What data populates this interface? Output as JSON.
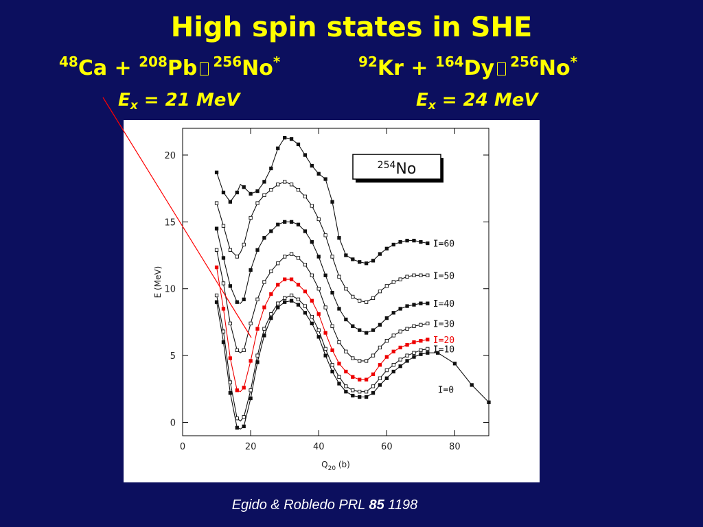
{
  "slide": {
    "title": "High spin states in SHE",
    "left": {
      "t1": "48",
      "e1": "Ca",
      "plus": " + ",
      "t2": "208",
      "e2": "Pb",
      "t3": "256",
      "e3": "No",
      "star": "*",
      "ex": {
        "E": "E",
        "x": "x",
        "val": " = 21 MeV"
      }
    },
    "right": {
      "t1": "92",
      "e1": "Kr",
      "plus": " + ",
      "t2": "164",
      "e2": "Dy",
      "t3": "256",
      "e3": "No",
      "star": "*",
      "ex": {
        "E": "E",
        "x": "x",
        "val": " = 24 MeV"
      }
    },
    "citation": {
      "authors": "Egido & Robledo PRL ",
      "vol": "85",
      "page": " 1198"
    },
    "colors": {
      "background": "#0c0f5e",
      "heading": "#ffff00",
      "highlight": "#ee0000",
      "pointer": "#ff0000"
    }
  },
  "chart_data": {
    "type": "line",
    "box_label": {
      "mass": "254",
      "element": "No"
    },
    "xlabel": {
      "main": "Q",
      "sub": "20",
      "unit": " (b)"
    },
    "ylabel": "E (MeV)",
    "xlim": [
      0,
      90
    ],
    "ylim": [
      -1,
      22
    ],
    "xticks": [
      0,
      20,
      40,
      60,
      80
    ],
    "yticks": [
      0,
      5,
      10,
      15,
      20
    ],
    "grid": false,
    "series": [
      {
        "name": "I=0",
        "highlight": false,
        "x": [
          10,
          12,
          14,
          16,
          17,
          18,
          20,
          22,
          24,
          26,
          28,
          30,
          32,
          34,
          36,
          38,
          40,
          42,
          44,
          46,
          48,
          50,
          52,
          54,
          56,
          58,
          60,
          62,
          64,
          66,
          68,
          70,
          72,
          75,
          80,
          85,
          90
        ],
        "y": [
          9.0,
          6.0,
          2.2,
          -0.4,
          -0.5,
          -0.3,
          1.8,
          4.5,
          6.5,
          7.8,
          8.6,
          9.0,
          9.1,
          8.8,
          8.2,
          7.4,
          6.4,
          5.0,
          3.8,
          2.9,
          2.3,
          2.0,
          1.9,
          1.9,
          2.2,
          2.8,
          3.3,
          3.8,
          4.2,
          4.6,
          4.9,
          5.1,
          5.2,
          5.2,
          4.4,
          2.8,
          1.5
        ]
      },
      {
        "name": "I=10",
        "highlight": false,
        "x": [
          10,
          12,
          14,
          16,
          17,
          18,
          20,
          22,
          24,
          26,
          28,
          30,
          32,
          34,
          36,
          38,
          40,
          42,
          44,
          46,
          48,
          50,
          52,
          54,
          56,
          58,
          60,
          62,
          64,
          66,
          68,
          70,
          72
        ],
        "y": [
          9.5,
          6.8,
          3.0,
          0.3,
          0.1,
          0.4,
          2.4,
          5.0,
          7.0,
          8.1,
          8.9,
          9.3,
          9.5,
          9.2,
          8.7,
          7.9,
          6.9,
          5.5,
          4.3,
          3.4,
          2.7,
          2.4,
          2.3,
          2.3,
          2.7,
          3.3,
          3.9,
          4.3,
          4.7,
          5.0,
          5.2,
          5.4,
          5.5
        ]
      },
      {
        "name": "I=20",
        "highlight": true,
        "x": [
          10,
          12,
          14,
          16,
          17,
          18,
          20,
          22,
          24,
          26,
          28,
          30,
          32,
          34,
          36,
          38,
          40,
          42,
          44,
          46,
          48,
          50,
          52,
          54,
          56,
          58,
          60,
          62,
          64,
          66,
          68,
          70,
          72
        ],
        "y": [
          11.6,
          8.5,
          4.8,
          2.4,
          2.3,
          2.6,
          4.6,
          7.0,
          8.6,
          9.6,
          10.3,
          10.7,
          10.7,
          10.3,
          9.8,
          9.1,
          8.1,
          6.7,
          5.4,
          4.4,
          3.8,
          3.4,
          3.2,
          3.2,
          3.6,
          4.3,
          4.9,
          5.3,
          5.6,
          5.8,
          6.0,
          6.1,
          6.2
        ]
      },
      {
        "name": "I=30",
        "highlight": false,
        "x": [
          10,
          12,
          14,
          16,
          17,
          18,
          20,
          22,
          24,
          26,
          28,
          30,
          32,
          34,
          36,
          38,
          40,
          42,
          44,
          46,
          48,
          50,
          52,
          54,
          56,
          58,
          60,
          62,
          64,
          66,
          68,
          70,
          72
        ],
        "y": [
          12.9,
          10.4,
          7.4,
          5.4,
          5.2,
          5.4,
          7.4,
          9.2,
          10.5,
          11.3,
          11.9,
          12.4,
          12.6,
          12.3,
          11.8,
          11.0,
          10.0,
          8.6,
          7.2,
          6.0,
          5.3,
          4.8,
          4.6,
          4.6,
          5.0,
          5.6,
          6.1,
          6.5,
          6.8,
          7.0,
          7.2,
          7.3,
          7.4
        ]
      },
      {
        "name": "I=40",
        "highlight": false,
        "x": [
          10,
          12,
          14,
          16,
          17,
          18,
          20,
          22,
          24,
          26,
          28,
          30,
          32,
          34,
          36,
          38,
          40,
          42,
          44,
          46,
          48,
          50,
          52,
          54,
          56,
          58,
          60,
          62,
          64,
          66,
          68,
          70,
          72
        ],
        "y": [
          14.5,
          12.3,
          10.2,
          9.0,
          8.9,
          9.2,
          11.4,
          12.9,
          13.8,
          14.3,
          14.8,
          15.0,
          15.0,
          14.8,
          14.3,
          13.5,
          12.4,
          11.0,
          9.7,
          8.5,
          7.7,
          7.2,
          6.9,
          6.7,
          6.9,
          7.3,
          7.8,
          8.2,
          8.5,
          8.7,
          8.8,
          8.9,
          8.9
        ]
      },
      {
        "name": "I=50",
        "highlight": false,
        "x": [
          10,
          12,
          14,
          16,
          17,
          18,
          20,
          22,
          24,
          26,
          28,
          30,
          32,
          34,
          36,
          38,
          40,
          42,
          44,
          46,
          48,
          50,
          52,
          54,
          56,
          58,
          60,
          62,
          64,
          66,
          68,
          70,
          72
        ],
        "y": [
          16.4,
          14.7,
          12.9,
          12.4,
          12.7,
          13.3,
          15.3,
          16.4,
          17.0,
          17.4,
          17.8,
          18.0,
          17.8,
          17.4,
          16.9,
          16.2,
          15.2,
          14.0,
          12.4,
          10.9,
          10.0,
          9.4,
          9.1,
          9.0,
          9.3,
          9.8,
          10.2,
          10.5,
          10.7,
          10.9,
          11.0,
          11.0,
          11.0
        ]
      },
      {
        "name": "I=60",
        "highlight": false,
        "x": [
          10,
          12,
          14,
          16,
          17,
          18,
          20,
          22,
          24,
          26,
          28,
          30,
          32,
          34,
          36,
          38,
          40,
          42,
          44,
          46,
          48,
          50,
          52,
          54,
          56,
          58,
          60,
          62,
          64,
          66,
          68,
          70,
          72
        ],
        "y": [
          18.7,
          17.2,
          16.5,
          17.2,
          17.8,
          17.6,
          17.1,
          17.3,
          18.0,
          19.0,
          20.5,
          21.3,
          21.2,
          20.8,
          20.0,
          19.2,
          18.6,
          18.2,
          16.5,
          13.8,
          12.5,
          12.2,
          12.0,
          11.9,
          12.1,
          12.6,
          13.0,
          13.3,
          13.5,
          13.6,
          13.6,
          13.5,
          13.4
        ]
      }
    ]
  }
}
